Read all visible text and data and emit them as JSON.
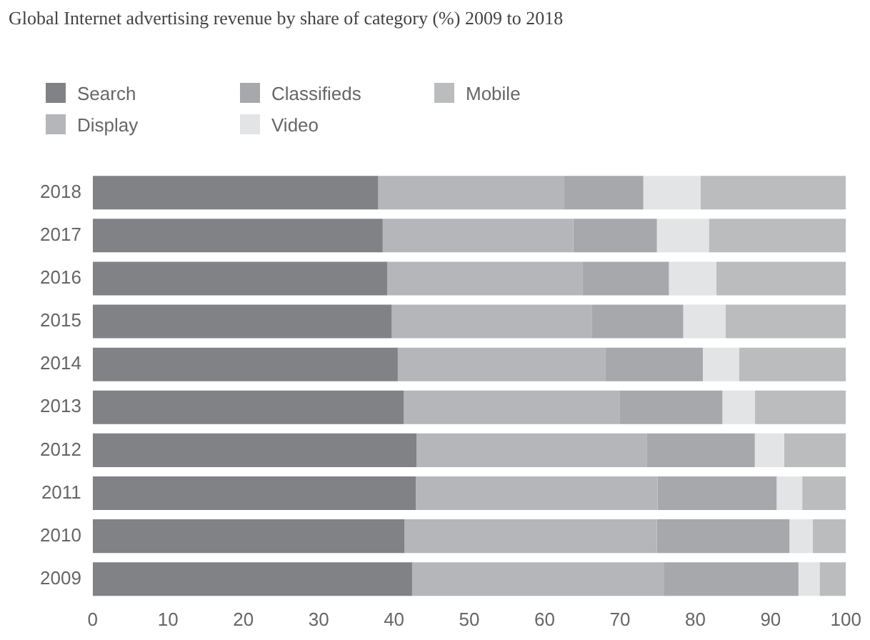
{
  "chart_data": {
    "type": "bar",
    "orientation": "horizontal",
    "stacked": true,
    "title": "Global Internet advertising revenue by share of category (%) 2009 to 2018",
    "categories": [
      "2018",
      "2017",
      "2016",
      "2015",
      "2014",
      "2013",
      "2012",
      "2011",
      "2010",
      "2009"
    ],
    "series": [
      {
        "name": "Search",
        "color": "#818286",
        "values": [
          37.9,
          38.5,
          39.1,
          39.7,
          40.5,
          41.3,
          43.0,
          42.9,
          41.4,
          42.4
        ]
      },
      {
        "name": "Display",
        "color": "#b5b6b9",
        "values": [
          24.7,
          25.3,
          25.9,
          26.6,
          27.6,
          28.7,
          30.6,
          32.1,
          33.5,
          33.4
        ]
      },
      {
        "name": "Classifieds",
        "color": "#a7a8ab",
        "values": [
          10.5,
          11.1,
          11.5,
          12.1,
          12.9,
          13.6,
          14.3,
          15.8,
          17.6,
          17.9
        ]
      },
      {
        "name": "Video",
        "color": "#e3e4e5",
        "values": [
          7.6,
          6.9,
          6.3,
          5.6,
          4.8,
          4.3,
          3.9,
          3.4,
          3.1,
          2.8
        ]
      },
      {
        "name": "Mobile",
        "color": "#bbbcbe",
        "values": [
          19.3,
          18.2,
          17.2,
          16.0,
          14.2,
          12.1,
          8.2,
          5.8,
          4.4,
          3.5
        ]
      }
    ],
    "xlim": [
      0,
      100
    ],
    "xticks": [
      0,
      10,
      20,
      30,
      40,
      50,
      60,
      70,
      80,
      90,
      100
    ],
    "grid": false,
    "legend": "top left"
  }
}
